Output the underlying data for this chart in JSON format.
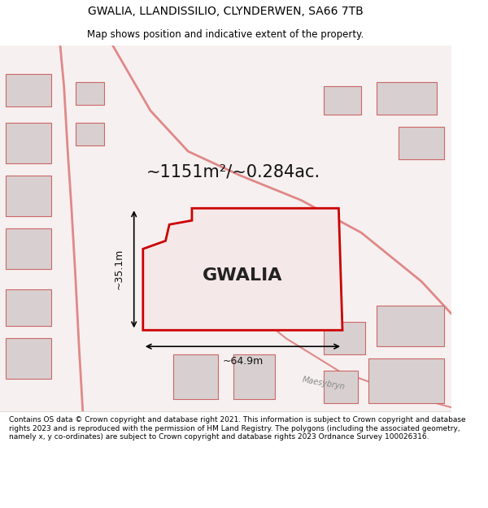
{
  "title": "GWALIA, LLANDISSILIO, CLYNDERWEN, SA66 7TB",
  "subtitle": "Map shows position and indicative extent of the property.",
  "area_text": "~1151m²/~0.284ac.",
  "property_label": "GWALIA",
  "dim_vertical": "~35.1m",
  "dim_horizontal": "~64.9m",
  "footer": "Contains OS data © Crown copyright and database right 2021. This information is subject to Crown copyright and database rights 2023 and is reproduced with the permission of HM Land Registry. The polygons (including the associated geometry, namely x, y co-ordinates) are subject to Crown copyright and database rights 2023 Ordnance Survey 100026316.",
  "bg_color": "#f5f0f0",
  "map_bg": "#f5f0f0",
  "property_fill": "#f0e8e8",
  "property_edge": "#cc0000",
  "road_color": "#e8a0a0",
  "building_fill": "#d8d0d0",
  "building_edge": "#cc6666",
  "label_road": "Maesybryn"
}
